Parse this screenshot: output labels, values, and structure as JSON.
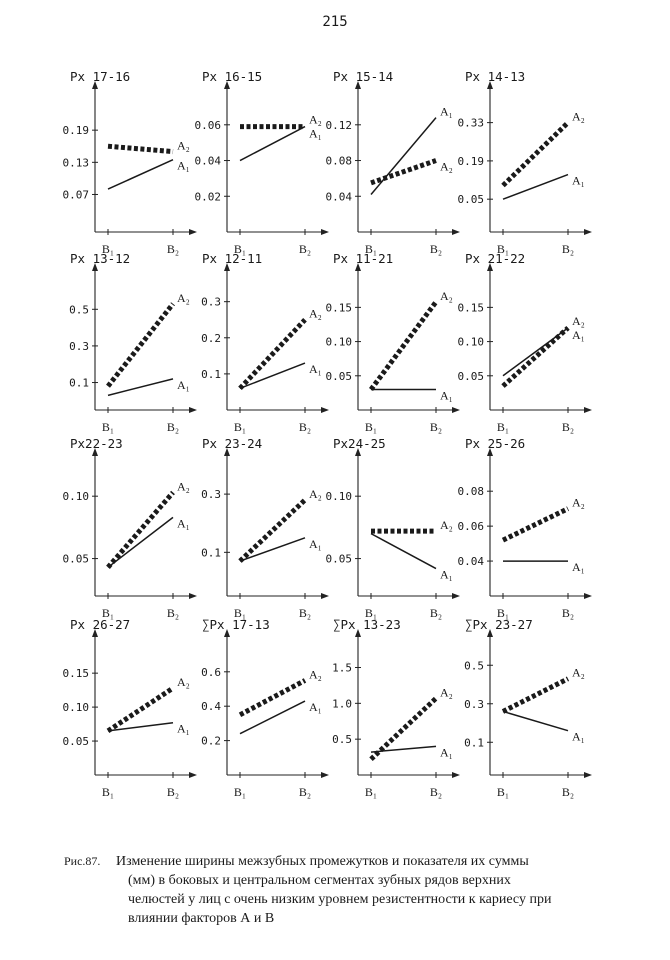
{
  "page_number": "215",
  "caption": {
    "number": "Рис.87.",
    "lines": [
      "Изменение ширины межзубных промежутков и показателя их суммы",
      "(мм) в боковых и центральном сегментах зубных рядов верхних",
      "челюстей у лиц с очень низким уровнем резистентности к кариесу при",
      "влиянии факторов А и В"
    ]
  },
  "series_labels": {
    "A1": "A₁",
    "A2": "A₂"
  },
  "x_tick_labels": [
    "B₁",
    "B₂"
  ],
  "chart_data": [
    {
      "type": "line",
      "title": "Px 17-16",
      "categories": [
        "B₁",
        "B₂"
      ],
      "yticks": [
        0.07,
        0.13,
        0.19
      ],
      "ytick_labels": [
        "0.07",
        "0.13",
        "0.19"
      ],
      "ylim": [
        0.0,
        0.25
      ],
      "series": [
        {
          "name": "A₁",
          "values": [
            0.08,
            0.135
          ]
        },
        {
          "name": "A₂",
          "values": [
            0.16,
            0.15
          ]
        }
      ]
    },
    {
      "type": "line",
      "title": "Px 16-15",
      "categories": [
        "B₁",
        "B₂"
      ],
      "yticks": [
        0.02,
        0.04,
        0.06
      ],
      "ytick_labels": [
        "0.02",
        "0.04",
        "0.06"
      ],
      "ylim": [
        0.0,
        0.075
      ],
      "series": [
        {
          "name": "A₁",
          "values": [
            0.04,
            0.059
          ]
        },
        {
          "name": "A₂",
          "values": [
            0.059,
            0.059
          ]
        }
      ]
    },
    {
      "type": "line",
      "title": "Px 15-14",
      "categories": [
        "B₁",
        "B₂"
      ],
      "yticks": [
        0.04,
        0.08,
        0.12
      ],
      "ytick_labels": [
        "0.04",
        "0.08",
        "0.12"
      ],
      "ylim": [
        0.0,
        0.15
      ],
      "series": [
        {
          "name": "A₁",
          "values": [
            0.042,
            0.128
          ]
        },
        {
          "name": "A₂",
          "values": [
            0.055,
            0.08
          ]
        }
      ]
    },
    {
      "type": "line",
      "title": "Px 14-13",
      "categories": [
        "B₁",
        "B₂"
      ],
      "yticks": [
        0.05,
        0.19,
        0.33
      ],
      "ytick_labels": [
        "0.05",
        "0.19",
        "0.33"
      ],
      "ylim": [
        -0.07,
        0.42
      ],
      "series": [
        {
          "name": "A₁",
          "values": [
            0.05,
            0.14
          ]
        },
        {
          "name": "A₂",
          "values": [
            0.1,
            0.33
          ]
        }
      ]
    },
    {
      "type": "line",
      "title": "Px 13-12",
      "categories": [
        "B₁",
        "B₂"
      ],
      "yticks": [
        0.1,
        0.3,
        0.5
      ],
      "ytick_labels": [
        "0.1",
        "0.3",
        "0.5"
      ],
      "ylim": [
        -0.05,
        0.66
      ],
      "series": [
        {
          "name": "A₁",
          "values": [
            0.03,
            0.12
          ]
        },
        {
          "name": "A₂",
          "values": [
            0.08,
            0.53
          ]
        }
      ]
    },
    {
      "type": "line",
      "title": "Px 12-11",
      "categories": [
        "B₁",
        "B₂"
      ],
      "yticks": [
        0.1,
        0.2,
        0.3
      ],
      "ytick_labels": [
        "0.1",
        "0.2",
        "0.3"
      ],
      "ylim": [
        0.0,
        0.36
      ],
      "series": [
        {
          "name": "A₁",
          "values": [
            0.06,
            0.13
          ]
        },
        {
          "name": "A₂",
          "values": [
            0.06,
            0.25
          ]
        }
      ]
    },
    {
      "type": "line",
      "title": "Px 11-21",
      "categories": [
        "B₁",
        "B₂"
      ],
      "yticks": [
        0.05,
        0.1,
        0.15
      ],
      "ytick_labels": [
        "0.05",
        "0.10",
        "0.15"
      ],
      "ylim": [
        0.0,
        0.19
      ],
      "series": [
        {
          "name": "A₁",
          "values": [
            0.03,
            0.03
          ]
        },
        {
          "name": "A₂",
          "values": [
            0.03,
            0.158
          ]
        }
      ]
    },
    {
      "type": "line",
      "title": "Px 21-22",
      "categories": [
        "B₁",
        "B₂"
      ],
      "yticks": [
        0.05,
        0.1,
        0.15
      ],
      "ytick_labels": [
        "0.05",
        "0.10",
        "0.15"
      ],
      "ylim": [
        0.0,
        0.19
      ],
      "series": [
        {
          "name": "A₁",
          "values": [
            0.05,
            0.12
          ]
        },
        {
          "name": "A₂",
          "values": [
            0.035,
            0.12
          ]
        }
      ]
    },
    {
      "type": "line",
      "title": "Px22-23",
      "categories": [
        "B₁",
        "B₂"
      ],
      "yticks": [
        0.05,
        0.1
      ],
      "ytick_labels": [
        "0.05",
        "0.10"
      ],
      "ylim": [
        0.02,
        0.125
      ],
      "series": [
        {
          "name": "A₁",
          "values": [
            0.043,
            0.083
          ]
        },
        {
          "name": "A₂",
          "values": [
            0.043,
            0.103
          ]
        }
      ]
    },
    {
      "type": "line",
      "title": "Px 23-24",
      "categories": [
        "B₁",
        "B₂"
      ],
      "yticks": [
        0.1,
        0.3
      ],
      "ytick_labels": [
        "0.1",
        "0.3"
      ],
      "ylim": [
        -0.05,
        0.4
      ],
      "series": [
        {
          "name": "A₁",
          "values": [
            0.07,
            0.15
          ]
        },
        {
          "name": "A₂",
          "values": [
            0.07,
            0.28
          ]
        }
      ]
    },
    {
      "type": "line",
      "title": "Px24-25",
      "categories": [
        "B₁",
        "B₂"
      ],
      "yticks": [
        0.05,
        0.1
      ],
      "ytick_labels": [
        "0.05",
        "0.10"
      ],
      "ylim": [
        0.02,
        0.125
      ],
      "series": [
        {
          "name": "A₁",
          "values": [
            0.07,
            0.042
          ]
        },
        {
          "name": "A₂",
          "values": [
            0.072,
            0.072
          ]
        }
      ]
    },
    {
      "type": "line",
      "title": "Px 25-26",
      "categories": [
        "B₁",
        "B₂"
      ],
      "yticks": [
        0.04,
        0.06,
        0.08
      ],
      "ytick_labels": [
        "0.04",
        "0.06",
        "0.08"
      ],
      "ylim": [
        0.02,
        0.095
      ],
      "series": [
        {
          "name": "A₁",
          "values": [
            0.04,
            0.04
          ]
        },
        {
          "name": "A₂",
          "values": [
            0.052,
            0.07
          ]
        }
      ]
    },
    {
      "type": "line",
      "title": "Px 26-27",
      "categories": [
        "B₁",
        "B₂"
      ],
      "yticks": [
        0.05,
        0.1,
        0.15
      ],
      "ytick_labels": [
        "0.05",
        "0.10",
        "0.15"
      ],
      "ylim": [
        0.0,
        0.19
      ],
      "series": [
        {
          "name": "A₁",
          "values": [
            0.065,
            0.077
          ]
        },
        {
          "name": "A₂",
          "values": [
            0.065,
            0.128
          ]
        }
      ]
    },
    {
      "type": "line",
      "title": "∑Px 17-13",
      "categories": [
        "B₁",
        "B₂"
      ],
      "yticks": [
        0.2,
        0.4,
        0.6
      ],
      "ytick_labels": [
        "0.2",
        "0.4",
        "0.6"
      ],
      "ylim": [
        0.0,
        0.75
      ],
      "series": [
        {
          "name": "A₁",
          "values": [
            0.24,
            0.43
          ]
        },
        {
          "name": "A₂",
          "values": [
            0.35,
            0.55
          ]
        }
      ]
    },
    {
      "type": "line",
      "title": "∑Px 13-23",
      "categories": [
        "B₁",
        "B₂"
      ],
      "yticks": [
        0.5,
        1.0,
        1.5
      ],
      "ytick_labels": [
        "0.5",
        "1.0",
        "1.5"
      ],
      "ylim": [
        0.0,
        1.8
      ],
      "series": [
        {
          "name": "A₁",
          "values": [
            0.32,
            0.4
          ]
        },
        {
          "name": "A₂",
          "values": [
            0.22,
            1.07
          ]
        }
      ]
    },
    {
      "type": "line",
      "title": "∑Px 23-27",
      "categories": [
        "B₁",
        "B₂"
      ],
      "yticks": [
        0.1,
        0.3,
        0.5
      ],
      "ytick_labels": [
        "0.1",
        "0.3",
        "0.5"
      ],
      "ylim": [
        -0.07,
        0.6
      ],
      "series": [
        {
          "name": "A₁",
          "values": [
            0.26,
            0.16
          ]
        },
        {
          "name": "A₂",
          "values": [
            0.26,
            0.43
          ]
        }
      ]
    }
  ]
}
